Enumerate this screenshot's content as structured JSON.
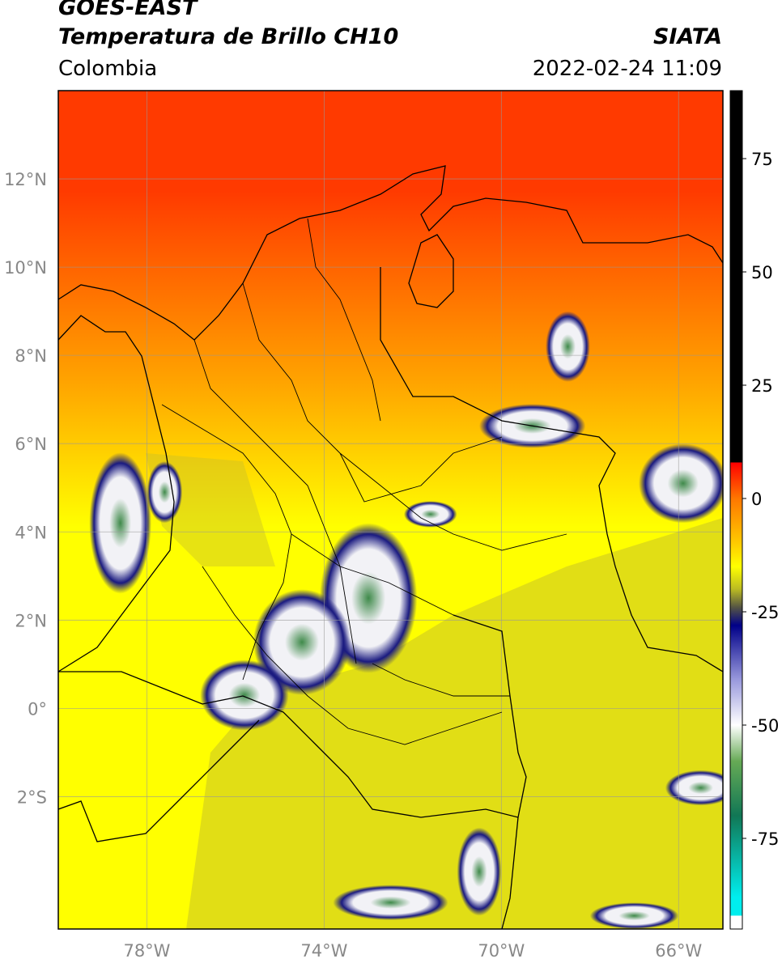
{
  "header": {
    "satellite": "GOES-EAST",
    "product": "Temperatura de Brillo CH10",
    "region": "Colombia",
    "source": "SIATA",
    "datetime": "2022-02-24 11:09"
  },
  "map": {
    "lon_range": [
      -80,
      -65
    ],
    "lat_range": [
      -5,
      14
    ],
    "lon_ticks": [
      {
        "value": -78,
        "label": "78°W"
      },
      {
        "value": -74,
        "label": "74°W"
      },
      {
        "value": -70,
        "label": "70°W"
      },
      {
        "value": -66,
        "label": "66°W"
      }
    ],
    "lat_ticks": [
      {
        "value": 12,
        "label": "12°N"
      },
      {
        "value": 10,
        "label": "10°N"
      },
      {
        "value": 8,
        "label": "8°N"
      },
      {
        "value": 6,
        "label": "6°N"
      },
      {
        "value": 4,
        "label": "4°N"
      },
      {
        "value": 2,
        "label": "2°N"
      },
      {
        "value": 0,
        "label": "0°"
      },
      {
        "value": -2,
        "label": "2°S"
      }
    ],
    "gridlines": true
  },
  "colorbar": {
    "range": [
      -95,
      90
    ],
    "ticks": [
      {
        "value": 75,
        "label": "75"
      },
      {
        "value": 50,
        "label": "50"
      },
      {
        "value": 25,
        "label": "25"
      },
      {
        "value": 0,
        "label": "0"
      },
      {
        "value": -25,
        "label": "-25"
      },
      {
        "value": -50,
        "label": "-50"
      },
      {
        "value": -75,
        "label": "-75"
      }
    ],
    "stops": [
      {
        "value": 90,
        "color": "#000000"
      },
      {
        "value": 8,
        "color": "#000000"
      },
      {
        "value": 7.9,
        "color": "#ff0000"
      },
      {
        "value": 0,
        "color": "#ff7700"
      },
      {
        "value": -10,
        "color": "#ffcc00"
      },
      {
        "value": -15,
        "color": "#ffff00"
      },
      {
        "value": -20,
        "color": "#bbbb22"
      },
      {
        "value": -24,
        "color": "#555544"
      },
      {
        "value": -28,
        "color": "#000088"
      },
      {
        "value": -40,
        "color": "#9999dd"
      },
      {
        "value": -50,
        "color": "#ffffff"
      },
      {
        "value": -58,
        "color": "#66aa55"
      },
      {
        "value": -70,
        "color": "#117755"
      },
      {
        "value": -88,
        "color": "#00eeee"
      },
      {
        "value": -92,
        "color": "#00eeee"
      },
      {
        "value": -92.1,
        "color": "#ffffff"
      },
      {
        "value": -95,
        "color": "#ffffff"
      }
    ]
  },
  "colors": {
    "north": "#ff3a00",
    "mid": "#ffa500",
    "south": "#ffff00",
    "olive": "#c9c227",
    "navy": "#1a1a80",
    "cloud_white": "#f2f2f6",
    "cloud_green": "#3f8a4a"
  },
  "clouds": [
    {
      "lon": -78.6,
      "lat": 4.2,
      "rx": 0.7,
      "ry": 1.6
    },
    {
      "lon": -77.6,
      "lat": 4.9,
      "rx": 0.4,
      "ry": 0.7
    },
    {
      "lon": -73.0,
      "lat": 2.5,
      "rx": 1.1,
      "ry": 1.7
    },
    {
      "lon": -74.5,
      "lat": 1.5,
      "rx": 1.1,
      "ry": 1.2
    },
    {
      "lon": -75.8,
      "lat": 0.3,
      "rx": 1.0,
      "ry": 0.8
    },
    {
      "lon": -71.6,
      "lat": 4.4,
      "rx": 0.6,
      "ry": 0.3
    },
    {
      "lon": -69.3,
      "lat": 6.4,
      "rx": 1.2,
      "ry": 0.5
    },
    {
      "lon": -65.9,
      "lat": 5.1,
      "rx": 1.0,
      "ry": 0.9
    },
    {
      "lon": -68.5,
      "lat": 8.2,
      "rx": 0.5,
      "ry": 0.8
    },
    {
      "lon": -70.5,
      "lat": -3.7,
      "rx": 0.5,
      "ry": 1.0
    },
    {
      "lon": -72.5,
      "lat": -4.4,
      "rx": 1.3,
      "ry": 0.4
    },
    {
      "lon": -67.0,
      "lat": -4.7,
      "rx": 1.0,
      "ry": 0.3
    },
    {
      "lon": -65.5,
      "lat": -1.8,
      "rx": 0.8,
      "ry": 0.4
    }
  ]
}
